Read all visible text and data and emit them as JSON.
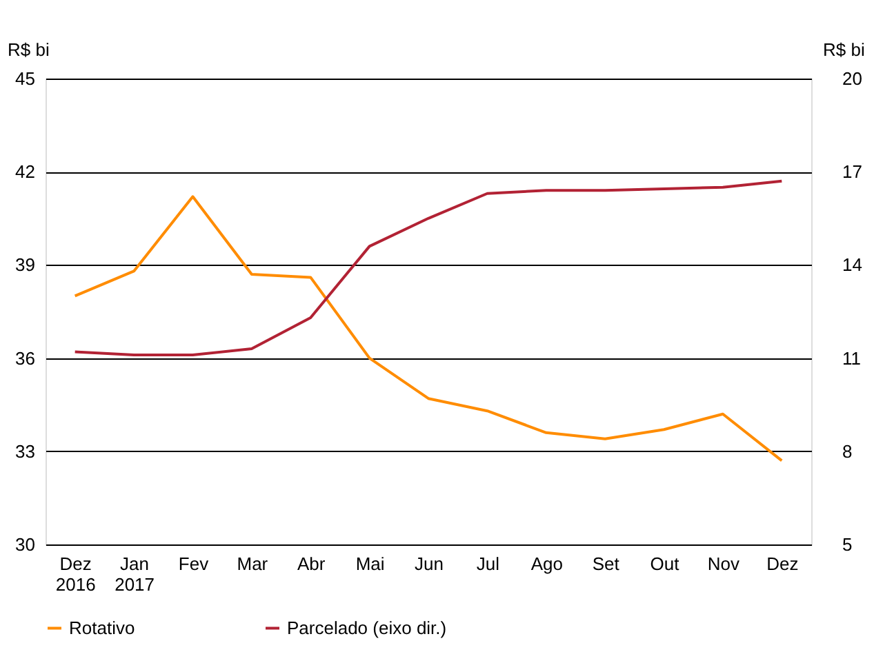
{
  "chart_data": {
    "type": "line",
    "ylabel": "R$ bi",
    "y2label": "R$ bi",
    "categories": [
      "Dez\n2016",
      "Jan\n2017",
      "Fev",
      "Mar",
      "Abr",
      "Mai",
      "Jun",
      "Jul",
      "Ago",
      "Set",
      "Out",
      "Nov",
      "Dez"
    ],
    "series": [
      {
        "name": "Rotativo",
        "color": "#ff8c00",
        "values": [
          38.0,
          38.8,
          41.2,
          38.7,
          38.6,
          36.0,
          34.7,
          34.3,
          33.6,
          33.4,
          33.7,
          34.2,
          32.7
        ]
      },
      {
        "name": "Parcelado (eixo dir.)",
        "color": "#b22234",
        "axis": "y2",
        "values": [
          11.2,
          11.1,
          11.1,
          11.3,
          12.3,
          14.6,
          15.5,
          16.3,
          16.4,
          16.4,
          16.45,
          16.5,
          16.7
        ]
      }
    ],
    "ylim": [
      30,
      45
    ],
    "yticks": [
      30,
      33,
      36,
      39,
      42,
      45
    ],
    "y2lim": [
      5,
      20
    ],
    "y2ticks": [
      5,
      8,
      11,
      14,
      17,
      20
    ],
    "grid": "y",
    "legend": "bottom"
  }
}
